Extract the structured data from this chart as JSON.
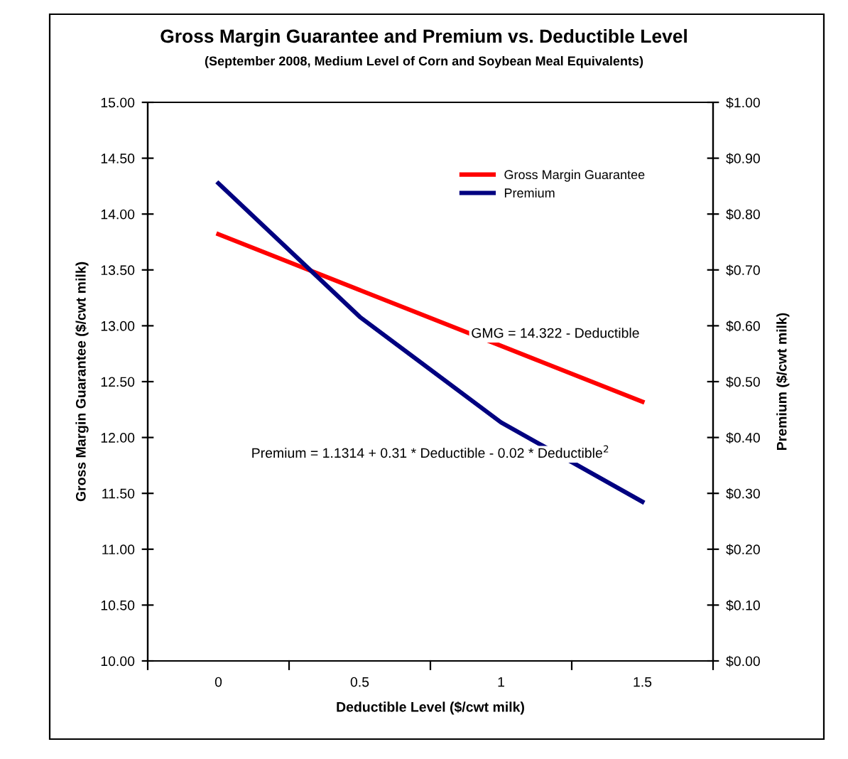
{
  "chart_data": {
    "type": "line",
    "title": "Gross Margin Guarantee and Premium vs. Deductible Level",
    "subtitle": "(September 2008, Medium Level of Corn and Soybean Meal Equivalents)",
    "xlabel": "Deductible Level ($/cwt milk)",
    "ylabel": "Gross Margin Guarantee ($/cwt milk)",
    "y2label": "Premium ($/cwt milk)",
    "categories": [
      "0",
      "0.5",
      "1",
      "1.5"
    ],
    "series": [
      {
        "name": "Gross Margin Guarantee",
        "color": "#ff0000",
        "values": [
          13.82,
          13.32,
          12.82,
          12.32
        ]
      },
      {
        "name": "Premium",
        "color": "#000080",
        "axis": "y2",
        "values": [
          0.855,
          0.616,
          0.427,
          0.285
        ]
      }
    ],
    "ylim": [
      10,
      15
    ],
    "yticks": [
      {
        "value": 10,
        "label": "10.00"
      },
      {
        "value": 10.5,
        "label": "10.50"
      },
      {
        "value": 11,
        "label": "11.00"
      },
      {
        "value": 11.5,
        "label": "11.50"
      },
      {
        "value": 12,
        "label": "12.00"
      },
      {
        "value": 12.5,
        "label": "12.50"
      },
      {
        "value": 13,
        "label": "13.00"
      },
      {
        "value": 13.5,
        "label": "13.50"
      },
      {
        "value": 14,
        "label": "14.00"
      },
      {
        "value": 14.5,
        "label": "14.50"
      },
      {
        "value": 15,
        "label": "15.00"
      }
    ],
    "y2lim": [
      0,
      1
    ],
    "y2ticks": [
      {
        "value": 0,
        "label": "$0.00"
      },
      {
        "value": 0.1,
        "label": "$0.10"
      },
      {
        "value": 0.2,
        "label": "$0.20"
      },
      {
        "value": 0.3,
        "label": "$0.30"
      },
      {
        "value": 0.4,
        "label": "$0.40"
      },
      {
        "value": 0.5,
        "label": "$0.50"
      },
      {
        "value": 0.6,
        "label": "$0.60"
      },
      {
        "value": 0.7,
        "label": "$0.70"
      },
      {
        "value": 0.8,
        "label": "$0.80"
      },
      {
        "value": 0.9,
        "label": "$0.90"
      },
      {
        "value": 1,
        "label": "$1.00"
      }
    ],
    "annotations": [
      "GMG = 14.322 - Deductible",
      "Premium = 1.1314 + 0.31 * Deductible - 0.02 * Deductible$^{2}$"
    ],
    "legend": "top right",
    "grid": false,
    "marker": "none",
    "line_style": "solid"
  }
}
